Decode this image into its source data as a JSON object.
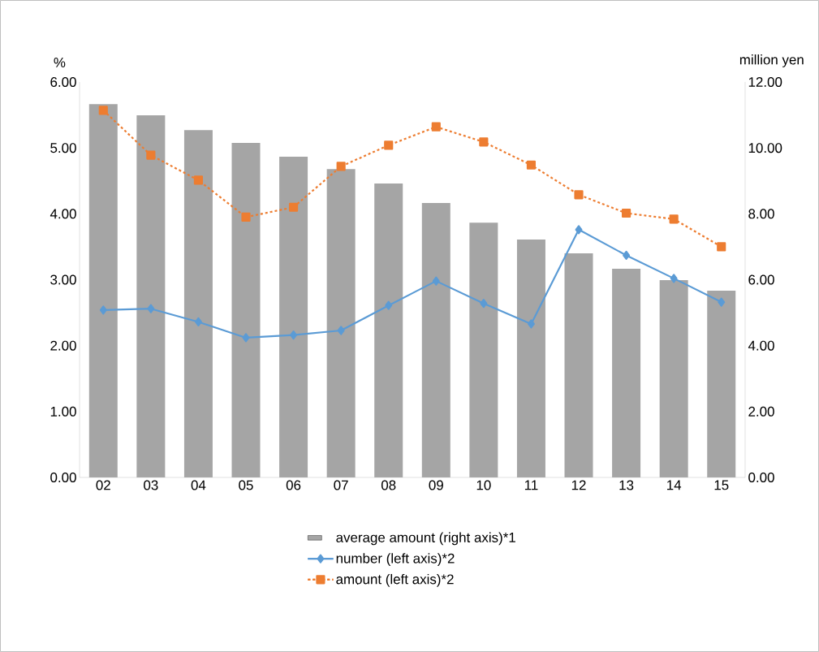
{
  "chart_data": {
    "type": "bar",
    "categories": [
      "02",
      "03",
      "04",
      "05",
      "06",
      "07",
      "08",
      "09",
      "10",
      "11",
      "12",
      "13",
      "14",
      "15"
    ],
    "ylabel": "%",
    "y2label": "million yen",
    "ylim": [
      0,
      6
    ],
    "yticks": [
      {
        "value": 0,
        "label": "0.00"
      },
      {
        "value": 1,
        "label": "1.00"
      },
      {
        "value": 2,
        "label": "2.00"
      },
      {
        "value": 3,
        "label": "3.00"
      },
      {
        "value": 4,
        "label": "4.00"
      },
      {
        "value": 5,
        "label": "5.00"
      },
      {
        "value": 6,
        "label": "6.00"
      }
    ],
    "y2lim": [
      0,
      12
    ],
    "y2ticks": [
      {
        "value": 0,
        "label": "0.00"
      },
      {
        "value": 2,
        "label": "2.00"
      },
      {
        "value": 4,
        "label": "4.00"
      },
      {
        "value": 6,
        "label": "6.00"
      },
      {
        "value": 8,
        "label": "8.00"
      },
      {
        "value": 10,
        "label": "10.00"
      },
      {
        "value": 12,
        "label": "12.00"
      }
    ],
    "legend": "bottom",
    "series": [
      {
        "name": "average amount (right axis)*1",
        "axis": "y2",
        "color": "#a5a5a5",
        "values": [
          11.33,
          10.99,
          10.54,
          10.15,
          9.73,
          9.36,
          8.92,
          8.33,
          7.73,
          7.22,
          6.8,
          6.33,
          5.99,
          5.67
        ]
      },
      {
        "name": "number (left axis)*2",
        "type": "line",
        "color": "#5b9bd5",
        "marker": "diamond",
        "line_style": "solid",
        "values": [
          2.54,
          2.56,
          2.36,
          2.12,
          2.16,
          2.23,
          2.61,
          2.98,
          2.64,
          2.33,
          3.76,
          3.37,
          3.02,
          2.66
        ]
      },
      {
        "name": "amount (left axis)*2",
        "type": "line",
        "color": "#ed7d31",
        "marker": "square",
        "line_style": "dashed",
        "values": [
          5.57,
          4.89,
          4.51,
          3.95,
          4.1,
          4.72,
          5.04,
          5.32,
          5.09,
          4.74,
          4.29,
          4.01,
          3.92,
          3.5
        ]
      }
    ]
  }
}
